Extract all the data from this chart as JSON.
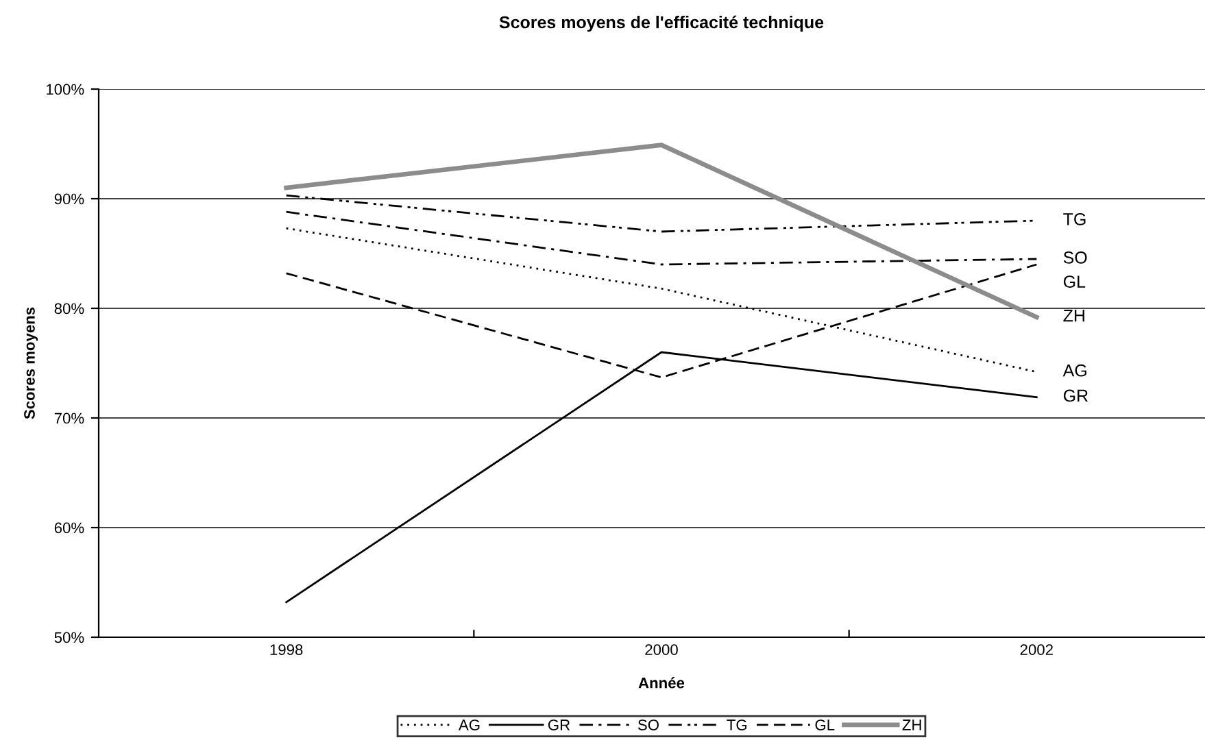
{
  "chart_data": {
    "type": "line",
    "title": "Scores moyens de l'efficacité technique",
    "xlabel": "Année",
    "ylabel": "Scores moyens",
    "categories": [
      "1998",
      "2000",
      "2002"
    ],
    "series": [
      {
        "name": "AG",
        "color": "#000000",
        "line_style": "dotted",
        "values": [
          87.3,
          81.8,
          74.2
        ]
      },
      {
        "name": "GR",
        "color": "#000000",
        "line_style": "solid",
        "values": [
          53.2,
          76.0,
          71.9
        ]
      },
      {
        "name": "SO",
        "color": "#000000",
        "line_style": "dashdot",
        "values": [
          88.8,
          84.0,
          84.5
        ]
      },
      {
        "name": "TG",
        "color": "#000000",
        "line_style": "dashdotdot",
        "values": [
          90.3,
          87.0,
          88.0
        ]
      },
      {
        "name": "GL",
        "color": "#000000",
        "line_style": "dashed",
        "values": [
          83.2,
          73.7,
          84.0
        ]
      },
      {
        "name": "ZH",
        "color": "#8c8c8c",
        "line_style": "solid",
        "values": [
          91.0,
          94.9,
          79.2
        ]
      }
    ],
    "ylim": [
      50,
      100
    ],
    "yticks": [
      {
        "value": 50,
        "label": "50%"
      },
      {
        "value": 60,
        "label": "60%"
      },
      {
        "value": 70,
        "label": "70%"
      },
      {
        "value": 80,
        "label": "80%"
      },
      {
        "value": 90,
        "label": "90%"
      },
      {
        "value": 100,
        "label": "100%"
      }
    ],
    "grid": "y",
    "legend": "bottom",
    "marker": "none"
  }
}
